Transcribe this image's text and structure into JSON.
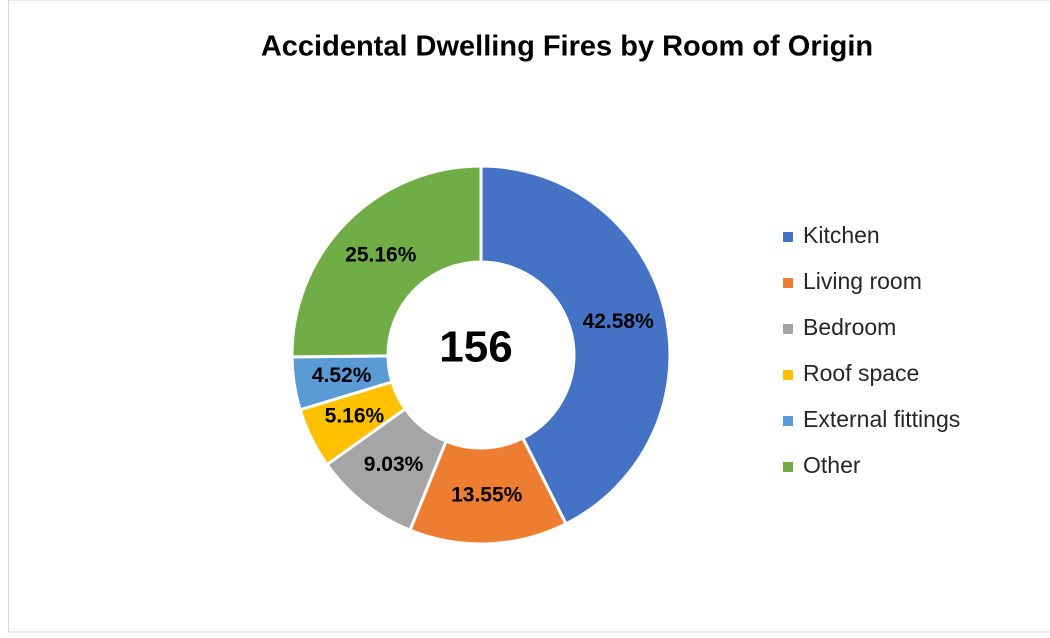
{
  "chart_data": {
    "type": "donut",
    "title": "Accidental Dwelling Fires by Room of Origin",
    "center_text": "156",
    "categories": [
      "Kitchen",
      "Living room",
      "Bedroom",
      "Roof space",
      "External fittings",
      "Other"
    ],
    "values": [
      42.58,
      13.55,
      9.03,
      5.16,
      4.52,
      25.16
    ],
    "value_labels": [
      "42.58%",
      "13.55%",
      "9.03%",
      "5.16%",
      "4.52%",
      "25.16%"
    ],
    "colors": [
      "#4472c4",
      "#ed7d31",
      "#a5a5a5",
      "#ffc000",
      "#5b9bd5",
      "#70ad47"
    ],
    "legend": "right"
  }
}
